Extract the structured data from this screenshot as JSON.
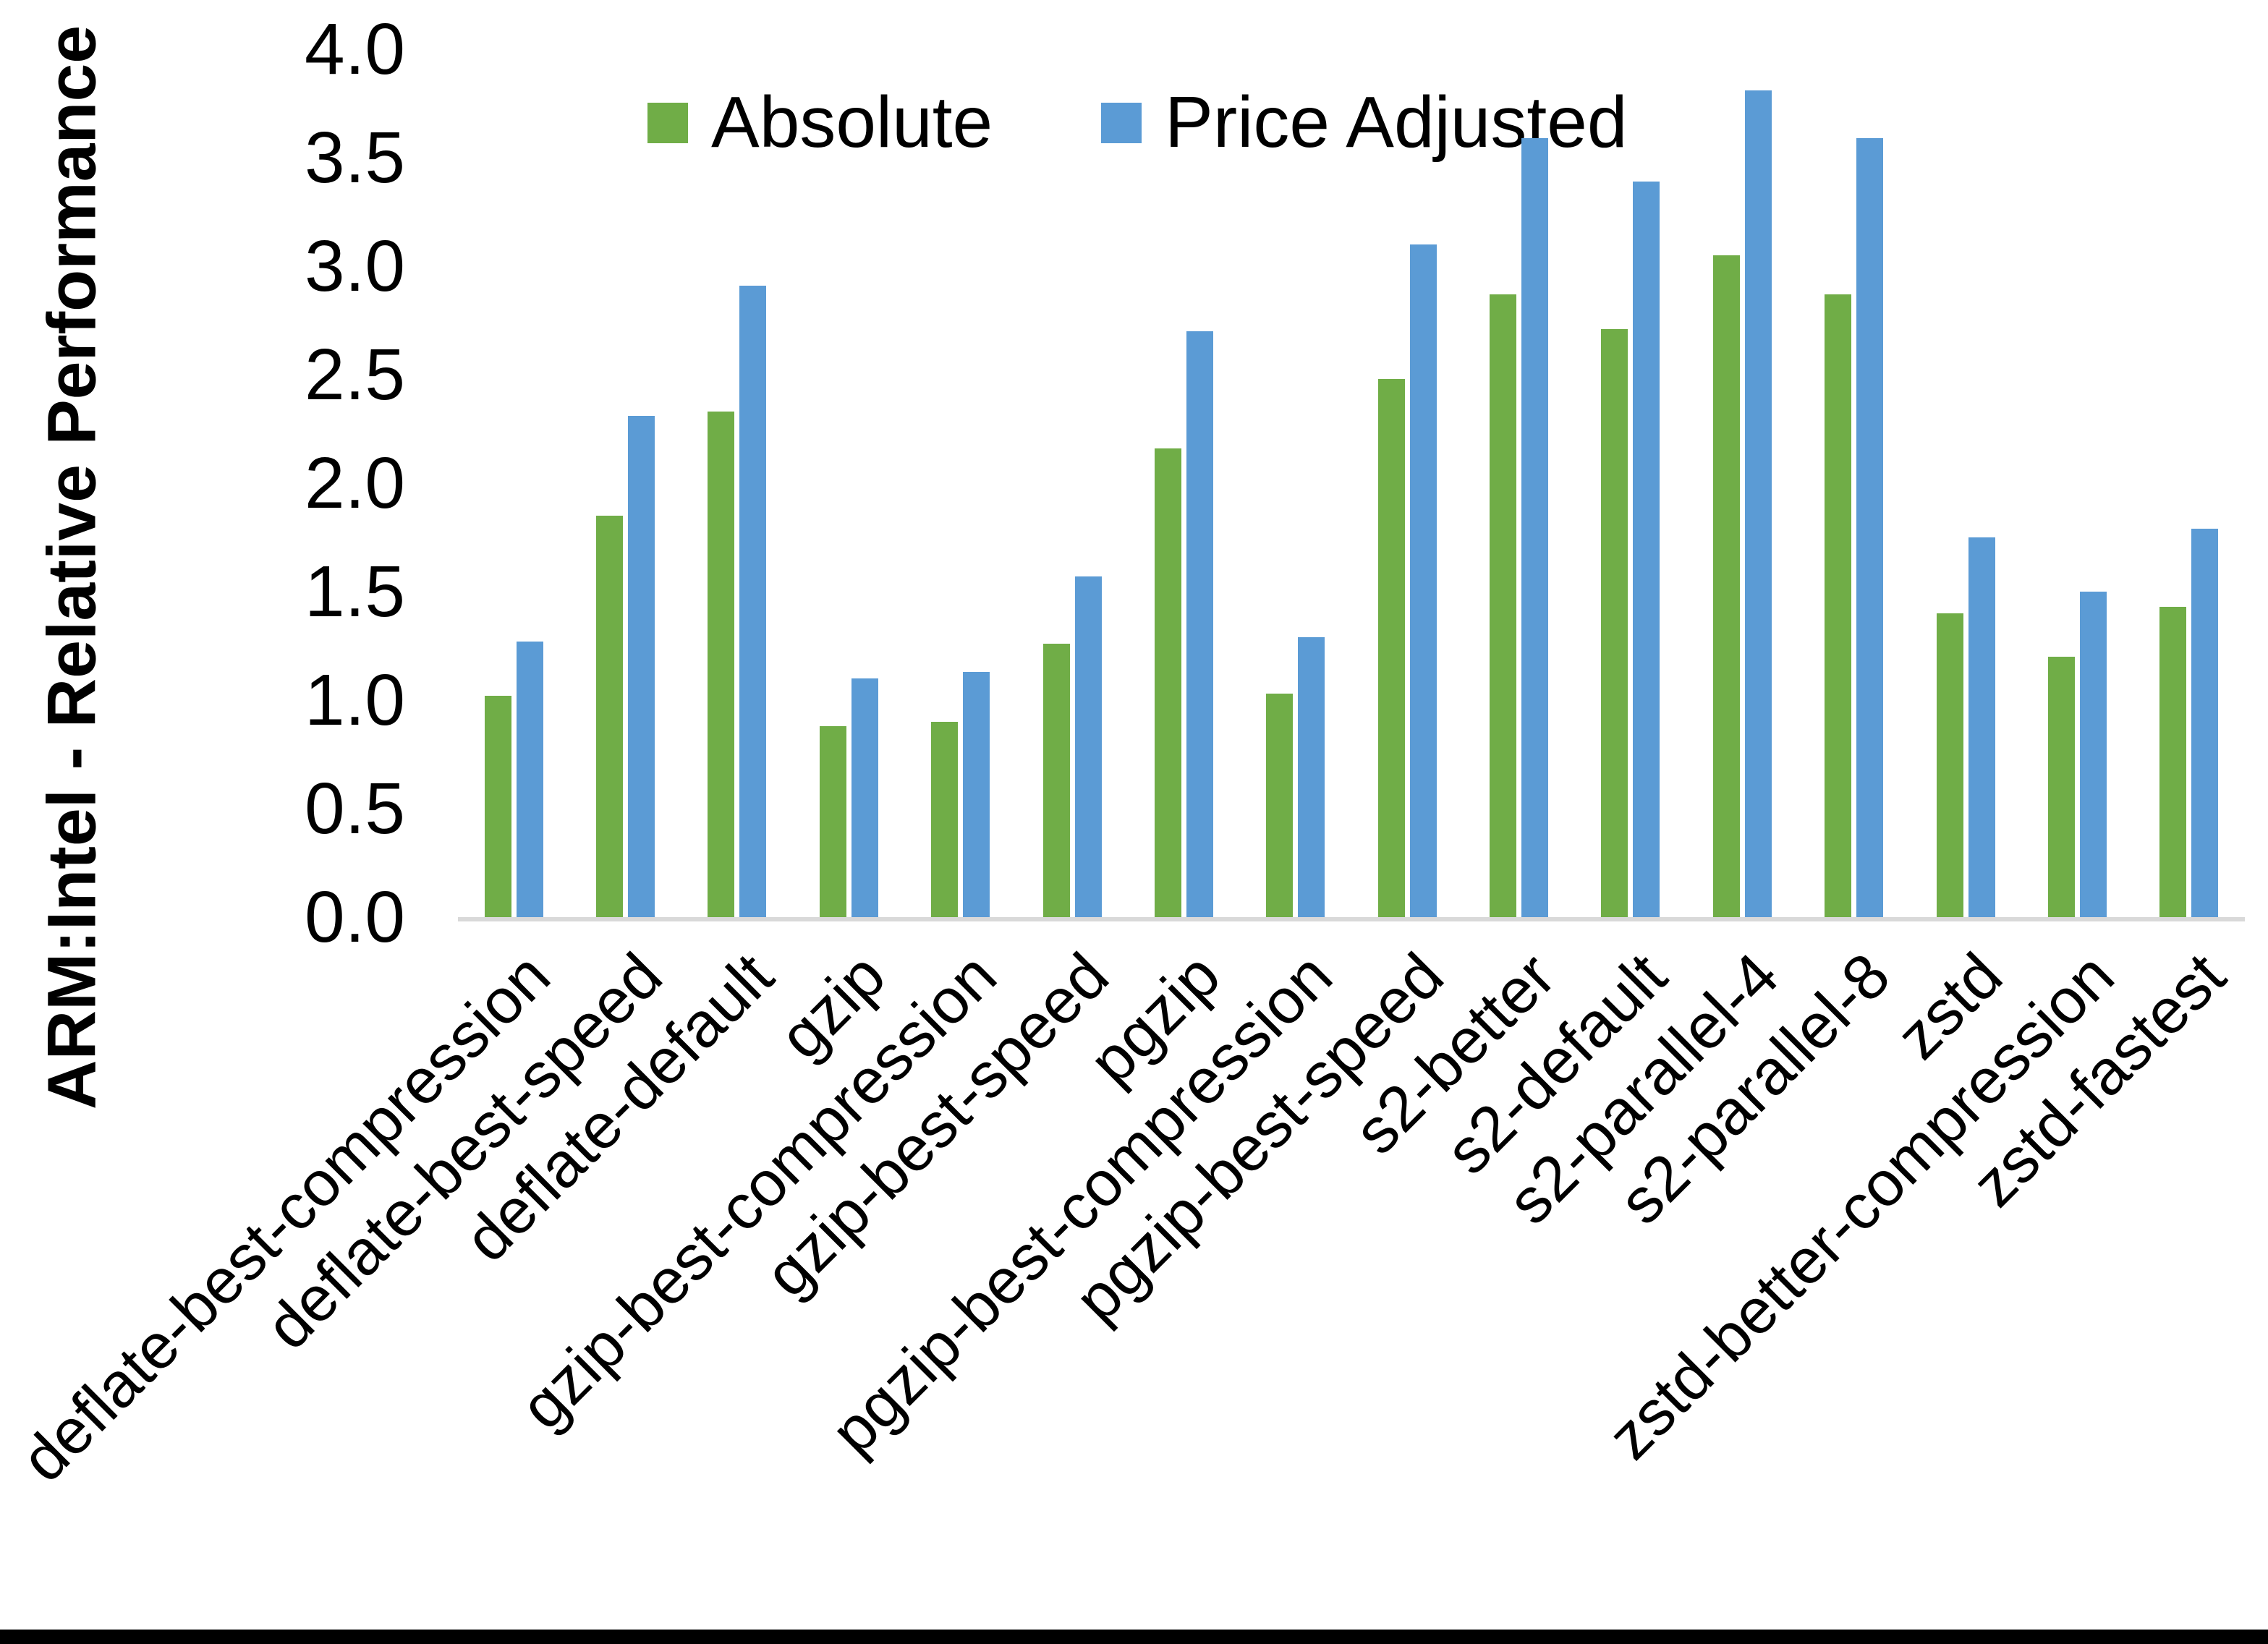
{
  "chart_data": {
    "type": "bar",
    "title": "",
    "xlabel": "",
    "ylabel": "ARM:Intel - Relative Performance",
    "ylim": [
      0.0,
      4.0
    ],
    "ytick_step": 0.5,
    "ytick_labels": [
      "4.0",
      "3.5",
      "3.0",
      "2.5",
      "2.0",
      "1.5",
      "1.0",
      "0.5",
      "0.0"
    ],
    "grid": false,
    "legend_position": "top-center",
    "categories": [
      "deflate-best-compression",
      "deflate-best-speed",
      "deflate-default",
      "gzip",
      "gzip-best-compression",
      "gzip-best-speed",
      "pgzip",
      "pgzip-best-compression",
      "pgzip-best-speed",
      "s2-better",
      "s2-default",
      "s2-parallel-4",
      "s2-parallel-8",
      "zstd",
      "zstd-better-compression",
      "zstd-fastest"
    ],
    "series": [
      {
        "name": "Absolute",
        "color": "#70AD47",
        "values": [
          1.02,
          1.85,
          2.33,
          0.88,
          0.9,
          1.26,
          2.16,
          1.03,
          2.48,
          2.87,
          2.71,
          3.05,
          2.87,
          1.4,
          1.2,
          1.43
        ]
      },
      {
        "name": "Price Adjusted",
        "color": "#5B9BD5",
        "values": [
          1.27,
          2.31,
          2.91,
          1.1,
          1.13,
          1.57,
          2.7,
          1.29,
          3.1,
          3.59,
          3.39,
          3.81,
          3.59,
          1.75,
          1.5,
          1.79
        ]
      }
    ]
  },
  "colors": {
    "background": "#FFFFFF",
    "axis_line": "#D9D9D9",
    "text": "#000000",
    "bottom_border": "#000000"
  }
}
